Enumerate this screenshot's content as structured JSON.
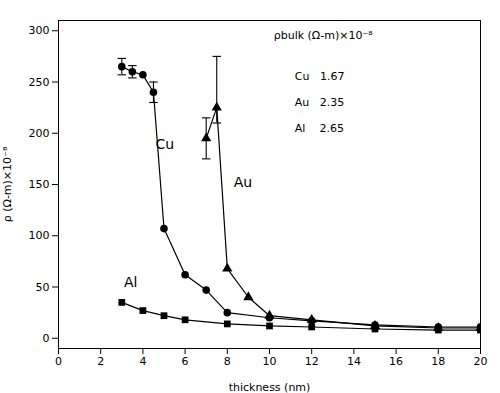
{
  "chart_data": {
    "type": "line",
    "xlabel": "thickness (nm)",
    "ylabel": "ρ (Ω-m)×10⁻⁸",
    "xlim": [
      0,
      20
    ],
    "ylim": [
      -10,
      310
    ],
    "xticks": [
      0,
      2,
      4,
      6,
      8,
      10,
      12,
      14,
      16,
      18,
      20
    ],
    "yticks": [
      0,
      50,
      100,
      150,
      200,
      250,
      300
    ],
    "series": [
      {
        "name": "Cu",
        "color": "#000000",
        "marker": "circle",
        "x": [
          3.0,
          3.5,
          4.0,
          4.5,
          5.0,
          6.0,
          7.0,
          8.0,
          10.0,
          12.0,
          15.0,
          18.0,
          20.0
        ],
        "values": [
          265,
          260,
          257,
          240,
          107,
          62,
          47,
          25,
          20,
          17,
          13,
          11,
          11
        ],
        "errors": [
          {
            "x": 3.0,
            "y": 265,
            "minus": 8,
            "plus": 8
          },
          {
            "x": 3.5,
            "y": 260,
            "minus": 6,
            "plus": 6
          },
          {
            "x": 4.5,
            "y": 240,
            "minus": 10,
            "plus": 10
          }
        ],
        "label": {
          "x": 4.6,
          "y": 185
        }
      },
      {
        "name": "Au",
        "color": "#000000",
        "marker": "triangle",
        "x": [
          7.0,
          7.5,
          8.0,
          9.0,
          10.0,
          12.0,
          15.0,
          18.0,
          20.0
        ],
        "values": [
          195,
          225,
          68,
          40,
          22,
          18,
          12,
          10,
          10
        ],
        "errors": [
          {
            "x": 7.0,
            "y": 195,
            "minus": 20,
            "plus": 20
          },
          {
            "x": 7.5,
            "y": 225,
            "minus": 15,
            "plus": 50
          }
        ],
        "label": {
          "x": 8.3,
          "y": 148
        }
      },
      {
        "name": "Al",
        "color": "#000000",
        "marker": "square",
        "x": [
          3.0,
          4.0,
          5.0,
          6.0,
          8.0,
          10.0,
          12.0,
          15.0,
          18.0,
          20.0
        ],
        "values": [
          35,
          27,
          22,
          18,
          14,
          12,
          11,
          9,
          8,
          8
        ],
        "errors": [],
        "label": {
          "x": 3.1,
          "y": 50
        }
      }
    ],
    "annotations": [
      {
        "text": "ρbulk (Ω-m)×10⁻⁸",
        "x": 10.2,
        "y": 295
      },
      {
        "text": "Cu   1.67",
        "x": 11.2,
        "y": 255
      },
      {
        "text": "Au   2.35",
        "x": 11.2,
        "y": 230
      },
      {
        "text": "Al    2.65",
        "x": 11.2,
        "y": 205
      }
    ]
  }
}
